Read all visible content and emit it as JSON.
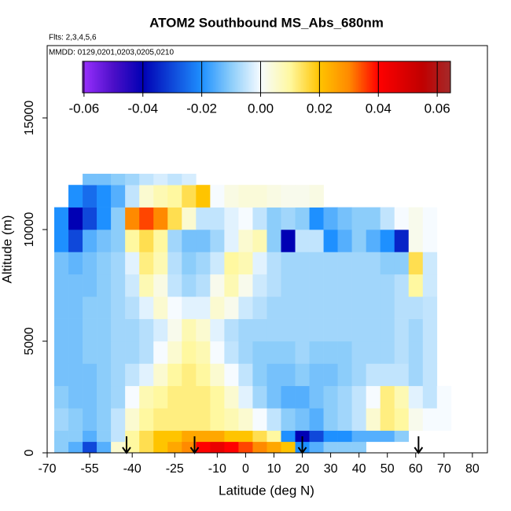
{
  "chart_data": {
    "type": "heatmap",
    "title": "ATOM2 Southbound MS_Abs_680nm",
    "subtitle": "Flts: 2,3,4,5,6",
    "annotation": "MMDD: 0129,0201,0203,0205,0210",
    "x_label": "Latitude (deg N)",
    "y_label": "Altitude (m)",
    "xlim": [
      -70,
      85.3
    ],
    "ylim": [
      0,
      18240
    ],
    "xticks": [
      -70,
      -55,
      -40,
      -25,
      -10,
      0,
      10,
      20,
      30,
      40,
      50,
      60,
      70,
      80
    ],
    "yticks": [
      0,
      5000,
      10000,
      15000
    ],
    "x_edges": [
      -67.5,
      -62.5,
      -57.5,
      -52.5,
      -47.5,
      -42.5,
      -37.5,
      -32.5,
      -27.5,
      -22.5,
      -17.5,
      -12.5,
      -7.5,
      -2.5,
      2.5,
      7.5,
      12.5,
      17.5,
      22.5,
      27.5,
      32.5,
      37.5,
      42.5,
      47.5,
      52.5,
      57.5,
      62.5,
      67.5,
      72.5
    ],
    "y_edges": [
      0,
      500,
      1000,
      2000,
      3000,
      4000,
      5000,
      6000,
      7000,
      8000,
      9000,
      10000,
      11000,
      12000,
      12500
    ],
    "z": [
      [
        -0.01,
        -0.015,
        -0.03,
        -0.015,
        0.005,
        0.01,
        0.015,
        0.02,
        0.025,
        0.03,
        0.04,
        0.045,
        0.04,
        0.035,
        0.03,
        0.025,
        0.02,
        -0.02,
        -0.015,
        -0.01,
        -0.01,
        -0.01,
        null,
        null,
        null,
        null,
        null,
        null
      ],
      [
        -0.01,
        -0.01,
        -0.015,
        -0.01,
        -0.005,
        0.01,
        0.015,
        0.02,
        0.02,
        0.025,
        0.025,
        0.025,
        0.02,
        0.02,
        0.015,
        0.01,
        -0.02,
        -0.04,
        -0.03,
        -0.02,
        -0.02,
        -0.015,
        -0.015,
        -0.015,
        -0.01,
        null,
        null,
        null
      ],
      [
        -0.008,
        -0.01,
        -0.012,
        -0.01,
        -0.005,
        0.005,
        0.01,
        0.012,
        0.012,
        0.012,
        0.012,
        0.01,
        0.008,
        0.005,
        0,
        -0.005,
        -0.01,
        -0.012,
        -0.015,
        -0.01,
        -0.008,
        -0.005,
        0.005,
        0.012,
        0.01,
        0.002,
        0,
        0
      ],
      [
        -0.01,
        -0.012,
        -0.012,
        -0.01,
        -0.008,
        0,
        0.008,
        0.01,
        0.012,
        0.012,
        0.012,
        0.01,
        0.005,
        -0.002,
        -0.008,
        -0.012,
        -0.015,
        -0.015,
        -0.012,
        -0.01,
        -0.008,
        -0.005,
        0,
        0.012,
        0.008,
        -0.002,
        -0.005,
        0
      ],
      [
        -0.012,
        -0.012,
        -0.012,
        -0.01,
        -0.008,
        -0.005,
        -0.002,
        0.005,
        0.01,
        0.012,
        0.01,
        0.005,
        0,
        -0.005,
        -0.01,
        -0.012,
        -0.012,
        -0.01,
        -0.012,
        -0.012,
        -0.01,
        -0.008,
        -0.005,
        -0.005,
        -0.005,
        -0.008,
        -0.005,
        null
      ],
      [
        -0.012,
        -0.012,
        -0.01,
        -0.01,
        -0.008,
        -0.008,
        -0.006,
        0,
        0.005,
        0.01,
        0.008,
        0,
        -0.005,
        -0.008,
        -0.01,
        -0.01,
        -0.01,
        -0.008,
        -0.01,
        -0.01,
        -0.01,
        -0.008,
        -0.008,
        -0.008,
        -0.006,
        -0.008,
        -0.005,
        null
      ],
      [
        -0.012,
        -0.012,
        -0.01,
        -0.01,
        -0.008,
        -0.008,
        -0.006,
        -0.003,
        0.002,
        0.008,
        0.005,
        -0.002,
        -0.006,
        -0.008,
        -0.008,
        -0.008,
        -0.008,
        -0.008,
        -0.008,
        -0.008,
        -0.008,
        -0.008,
        -0.008,
        -0.008,
        -0.006,
        -0.008,
        -0.005,
        null
      ],
      [
        -0.012,
        -0.012,
        -0.01,
        -0.01,
        -0.008,
        -0.006,
        -0.002,
        0.005,
        0,
        -0.002,
        -0.002,
        0.005,
        0.002,
        -0.004,
        -0.006,
        -0.008,
        -0.008,
        -0.008,
        -0.008,
        -0.008,
        -0.008,
        -0.008,
        -0.008,
        -0.008,
        -0.006,
        -0.006,
        -0.005,
        null
      ],
      [
        -0.012,
        -0.012,
        -0.012,
        -0.01,
        -0.008,
        -0.004,
        0.008,
        0.003,
        -0.005,
        -0.008,
        -0.006,
        0.002,
        0.008,
        0.002,
        -0.004,
        -0.006,
        -0.008,
        -0.008,
        -0.008,
        -0.008,
        -0.008,
        -0.008,
        -0.008,
        -0.008,
        -0.006,
        0.01,
        -0.004,
        null
      ],
      [
        -0.012,
        -0.014,
        -0.012,
        -0.01,
        -0.008,
        -0.002,
        0.012,
        0.008,
        -0.006,
        -0.01,
        -0.008,
        -0.004,
        0.01,
        0.008,
        -0.002,
        -0.006,
        -0.008,
        -0.008,
        -0.008,
        -0.008,
        -0.008,
        -0.008,
        -0.008,
        -0.01,
        -0.01,
        0.015,
        -0.004,
        null
      ],
      [
        -0.02,
        -0.03,
        -0.015,
        -0.012,
        -0.01,
        0.01,
        0.015,
        0.01,
        -0.008,
        -0.012,
        -0.012,
        -0.008,
        -0.002,
        0.005,
        0.008,
        -0.01,
        -0.04,
        -0.005,
        -0.005,
        -0.02,
        -0.015,
        -0.01,
        -0.015,
        -0.02,
        -0.035,
        0.002,
        0,
        null
      ],
      [
        -0.02,
        -0.04,
        -0.03,
        -0.02,
        -0.01,
        0.03,
        0.035,
        0.03,
        0.015,
        0.005,
        -0.005,
        -0.005,
        -0.002,
        0,
        -0.005,
        -0.01,
        -0.008,
        -0.01,
        -0.02,
        -0.015,
        -0.012,
        -0.01,
        -0.01,
        -0.005,
        0,
        0.002,
        0,
        null
      ],
      [
        null,
        -0.02,
        -0.025,
        -0.02,
        -0.015,
        -0.005,
        0.005,
        0.008,
        0.01,
        0.015,
        0.02,
        0,
        0.003,
        0.004,
        0.004,
        0.003,
        0.002,
        0.002,
        0.003,
        null,
        null,
        null,
        null,
        null,
        null,
        null,
        null,
        null
      ],
      [
        null,
        null,
        -0.012,
        -0.012,
        -0.01,
        -0.008,
        -0.005,
        -0.003,
        -0.005,
        -0.003,
        null,
        null,
        null,
        null,
        null,
        null,
        null,
        null,
        null,
        null,
        null,
        null,
        null,
        null,
        null,
        null,
        null,
        null
      ]
    ],
    "arrows": [
      -42,
      -18,
      20,
      61
    ],
    "colorbar": {
      "range": [
        -0.0605,
        0.0645
      ],
      "ticks": [
        -0.06,
        -0.04,
        -0.02,
        {
          "value": 0,
          "label": "0.00"
        },
        0.02,
        0.04,
        0.06
      ],
      "stops": [
        -0.0605,
        -0.05,
        -0.04,
        -0.02,
        -0.01,
        0,
        0.01,
        0.02,
        0.03,
        0.04,
        0.055,
        0.0645
      ],
      "colors": [
        "#9b30ff",
        "#4b0fc8",
        "#0000b4",
        "#1e90ff",
        "#8ccdfa",
        "#f6fbff",
        "#fff8a0",
        "#ffc400",
        "#ff8a00",
        "#ff0000",
        "#c00000",
        "#a52a2a"
      ]
    }
  }
}
